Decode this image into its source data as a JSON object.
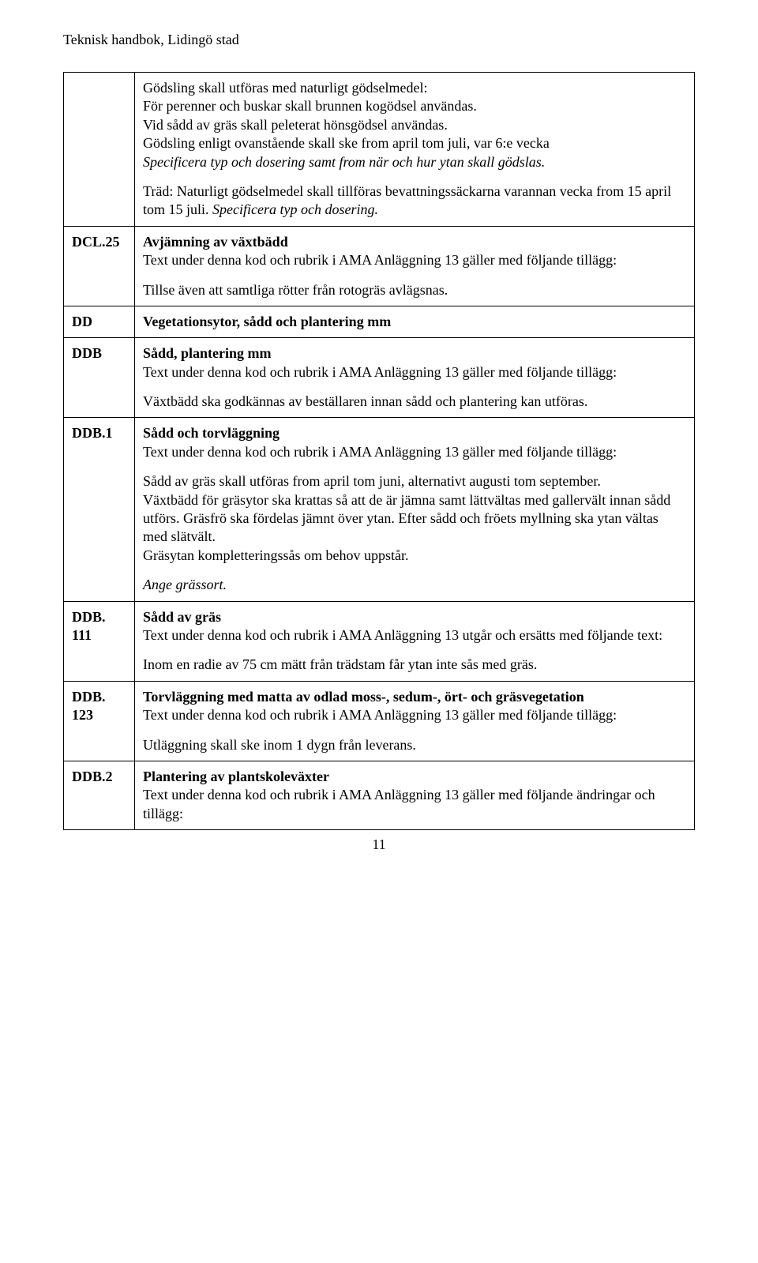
{
  "header": {
    "title": "Teknisk handbok, Lidingö stad"
  },
  "page_number": "11",
  "rows": [
    {
      "code": "",
      "paras": [
        {
          "text": "Gödsling skall utföras med naturligt gödselmedel:"
        },
        {
          "text": "För perenner och buskar skall brunnen kogödsel användas."
        },
        {
          "text": "Vid sådd av gräs skall peleterat hönsgödsel användas."
        },
        {
          "text": "Gödsling enligt ovanstående skall ske from april tom juli, var 6:e vecka"
        },
        {
          "text": "Specificera typ och dosering samt from när och hur ytan skall gödslas.",
          "italic": true,
          "gapAfter": true
        },
        {
          "text": "Träd: Naturligt gödselmedel skall tillföras bevattningssäckarna varannan vecka from 15 april tom 15 juli. ",
          "trailingItalic": "Specificera typ och dosering."
        }
      ]
    },
    {
      "code": "DCL.25",
      "paras": [
        {
          "text": "Avjämning av växtbädd",
          "bold": true
        },
        {
          "text": "Text under denna kod och rubrik i AMA Anläggning 13 gäller med följande tillägg:",
          "gapAfter": true
        },
        {
          "text": "Tillse även att samtliga rötter från rotogräs avlägsnas."
        }
      ]
    },
    {
      "code": "DD",
      "paras": [
        {
          "text": "Vegetationsytor, sådd och plantering mm",
          "bold": true
        }
      ]
    },
    {
      "code": "DDB",
      "paras": [
        {
          "text": "Sådd, plantering mm",
          "bold": true
        },
        {
          "text": "Text under denna kod och rubrik i AMA Anläggning 13 gäller med följande tillägg:",
          "gapAfter": true
        },
        {
          "text": "Växtbädd ska godkännas av beställaren innan sådd och plantering kan utföras."
        }
      ]
    },
    {
      "code": "DDB.1",
      "paras": [
        {
          "text": "Sådd och torvläggning",
          "bold": true
        },
        {
          "text": "Text under denna kod och rubrik i AMA Anläggning 13 gäller med följande tillägg:",
          "gapAfter": true
        },
        {
          "text": "Sådd av gräs skall utföras from april tom juni, alternativt augusti tom september."
        },
        {
          "text": "Växtbädd för gräsytor ska krattas så att de är jämna samt lättvältas med gallervält innan sådd utförs. Gräsfrö ska fördelas jämnt över ytan. Efter sådd och fröets myllning ska ytan vältas med slätvält."
        },
        {
          "text": "Gräsytan kompletteringssås om behov uppstår.",
          "gapAfter": true
        },
        {
          "text": "Ange grässort.",
          "italic": true
        }
      ]
    },
    {
      "code": "DDB.\n111",
      "paras": [
        {
          "text": "Sådd av gräs",
          "bold": true
        },
        {
          "text": "Text under denna kod och rubrik i AMA Anläggning 13 utgår och ersätts med följande text:",
          "gapAfter": true
        },
        {
          "text": "Inom en radie av 75 cm mätt från trädstam får ytan inte sås med gräs."
        }
      ]
    },
    {
      "code": "DDB.\n123",
      "paras": [
        {
          "text": "Torvläggning med matta av odlad moss-, sedum-, ört- och gräsvegetation",
          "bold": true
        },
        {
          "text": "Text under denna kod och rubrik i AMA Anläggning 13 gäller med följande tillägg:",
          "gapAfter": true
        },
        {
          "text": "Utläggning skall ske inom 1 dygn från leverans."
        }
      ]
    },
    {
      "code": "DDB.2",
      "paras": [
        {
          "text": "Plantering av plantskoleväxter",
          "bold": true
        },
        {
          "text": "Text under denna kod och rubrik i AMA Anläggning 13 gäller med följande ändringar och tillägg:"
        }
      ]
    }
  ]
}
